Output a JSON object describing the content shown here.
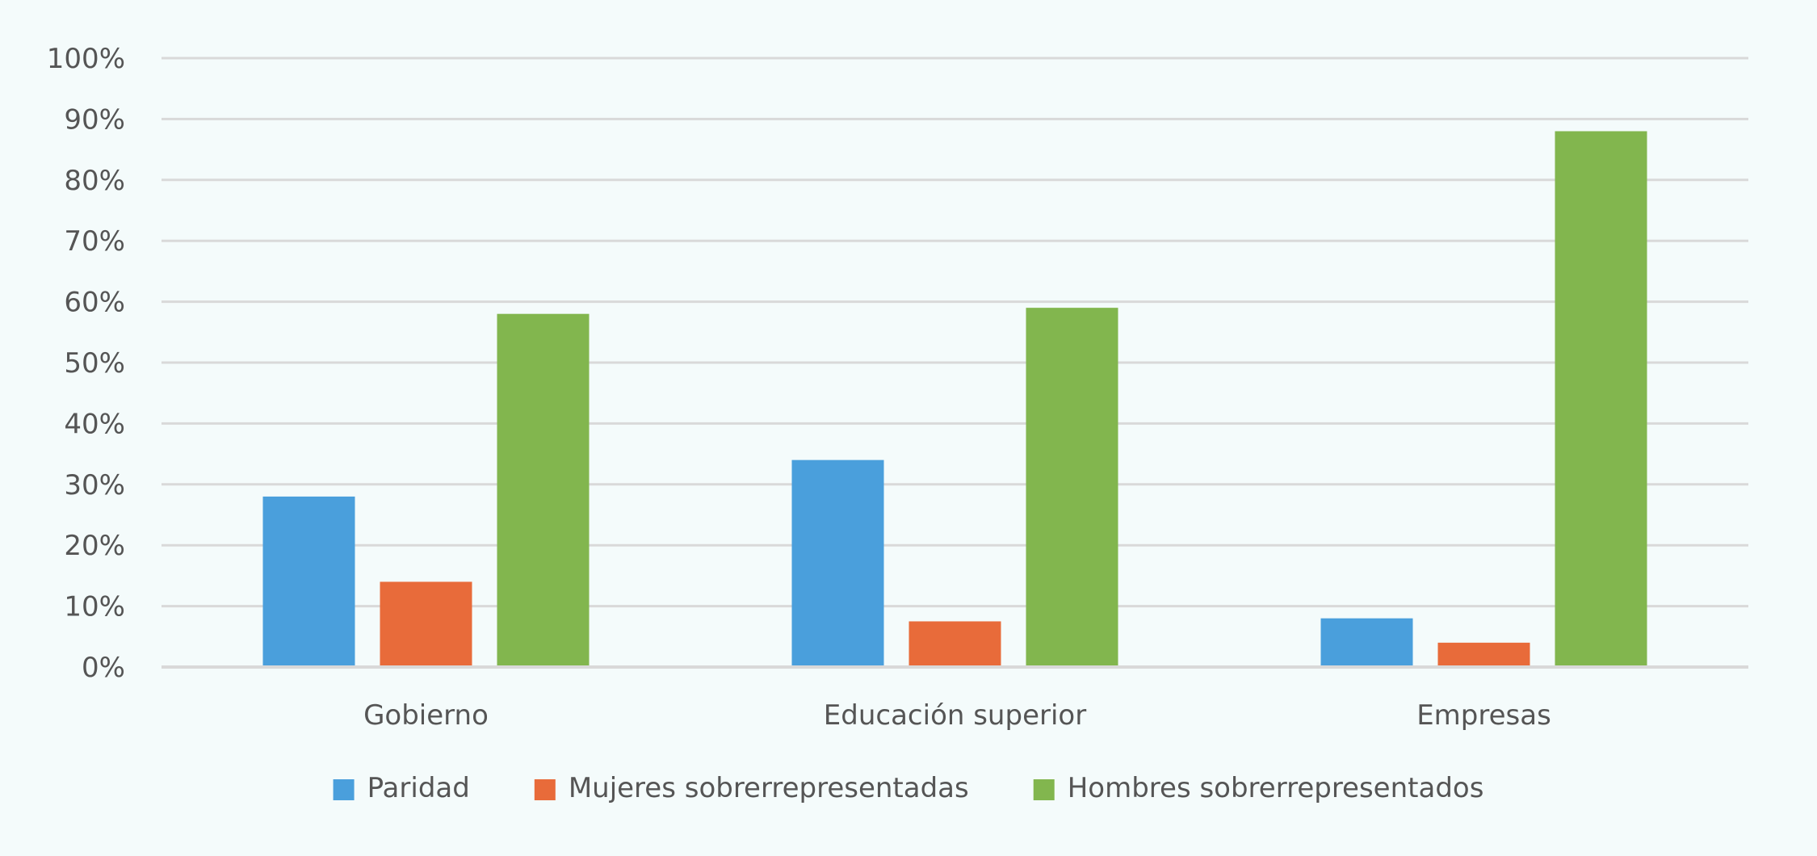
{
  "chart_data": {
    "type": "bar",
    "title": "",
    "xlabel": "",
    "ylabel": "",
    "categories": [
      "Gobierno",
      "Educación superior",
      "Empresas"
    ],
    "series": [
      {
        "name": "Paridad",
        "color": "#4a9fdc",
        "values": [
          28,
          34,
          8
        ]
      },
      {
        "name": "Mujeres sobrerrepresentadas",
        "color": "#e86b3a",
        "values": [
          14,
          7.5,
          4
        ]
      },
      {
        "name": "Hombres sobrerrepresentados",
        "color": "#82b64e",
        "values": [
          58,
          59,
          88
        ]
      }
    ],
    "ylim": [
      0,
      100
    ],
    "yticks": [
      0,
      10,
      20,
      30,
      40,
      50,
      60,
      70,
      80,
      90,
      100
    ],
    "ytick_suffix": "%",
    "grid": true,
    "legend_position": "bottom"
  }
}
